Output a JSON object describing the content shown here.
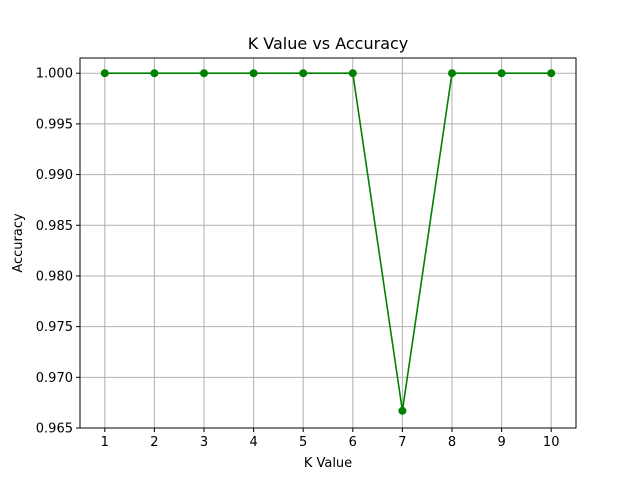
{
  "chart_data": {
    "type": "line",
    "title": "K Value vs Accuracy",
    "xlabel": "K Value",
    "ylabel": "Accuracy",
    "x": [
      1,
      2,
      3,
      4,
      5,
      6,
      7,
      8,
      9,
      10
    ],
    "series": [
      {
        "values": [
          1.0,
          1.0,
          1.0,
          1.0,
          1.0,
          1.0,
          0.9667,
          1.0,
          1.0,
          1.0
        ],
        "color": "#008000",
        "marker": "circle"
      }
    ],
    "xlim": [
      0.5,
      10.5
    ],
    "ylim": [
      0.965,
      1.0015
    ],
    "xticks": [
      1,
      2,
      3,
      4,
      5,
      6,
      7,
      8,
      9,
      10
    ],
    "yticks": [
      0.965,
      0.97,
      0.975,
      0.98,
      0.985,
      0.99,
      0.995,
      1.0
    ],
    "ytick_labels": [
      "0.965",
      "0.970",
      "0.975",
      "0.980",
      "0.985",
      "0.990",
      "0.995",
      "1.000"
    ],
    "grid": true
  }
}
